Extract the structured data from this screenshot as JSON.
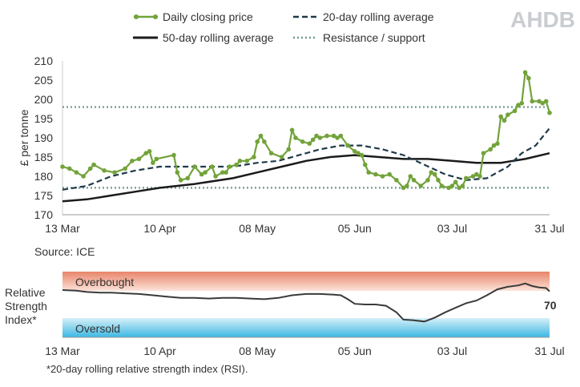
{
  "brand": {
    "logo_text": "AHDB"
  },
  "colors": {
    "daily": "#72a33a",
    "ma20": "#1f3a4a",
    "ma50": "#1b1b1b",
    "resistance": "#6f9a8d",
    "rsi": "#3a3a3a"
  },
  "footer": {
    "source": "Source: ICE",
    "rsi_note": "*20-day rolling relative strength index (RSI)."
  },
  "chart_data": [
    {
      "type": "line",
      "ylabel": "£ per tonne",
      "ylim": [
        170,
        210
      ],
      "yticks": [
        170,
        175,
        180,
        185,
        190,
        195,
        200,
        205,
        210
      ],
      "x_ticks": [
        "13 Mar",
        "10 Apr",
        "08 May",
        "05 Jun",
        "03 Jul",
        "31 Jul"
      ],
      "grid": false,
      "legend": "top",
      "series": [
        {
          "name": "Daily closing price",
          "style": "line-with-markers",
          "values": [
            [
              "13 Mar",
              182.5
            ],
            [
              "15 Mar",
              182.0
            ],
            [
              "17 Mar",
              181.0
            ],
            [
              "19 Mar",
              180.0
            ],
            [
              "21 Mar",
              182.0
            ],
            [
              "22 Mar",
              183.0
            ],
            [
              "25 Mar",
              181.5
            ],
            [
              "28 Mar",
              181.0
            ],
            [
              "31 Mar",
              182.0
            ],
            [
              "02 Apr",
              184.0
            ],
            [
              "04 Apr",
              184.5
            ],
            [
              "06 Apr",
              186.0
            ],
            [
              "07 Apr",
              186.5
            ],
            [
              "08 Apr",
              183.5
            ],
            [
              "09 Apr",
              184.5
            ],
            [
              "14 Apr",
              185.5
            ],
            [
              "15 Apr",
              181.0
            ],
            [
              "16 Apr",
              179.0
            ],
            [
              "18 Apr",
              179.5
            ],
            [
              "20 Apr",
              182.5
            ],
            [
              "22 Apr",
              180.5
            ],
            [
              "23 Apr",
              181.0
            ],
            [
              "25 Apr",
              182.5
            ],
            [
              "26 Apr",
              180.0
            ],
            [
              "28 Apr",
              181.0
            ],
            [
              "29 Apr",
              181.0
            ],
            [
              "30 Apr",
              182.5
            ],
            [
              "02 May",
              183.0
            ],
            [
              "03 May",
              184.0
            ],
            [
              "05 May",
              184.0
            ],
            [
              "07 May",
              185.0
            ],
            [
              "08 May",
              189.0
            ],
            [
              "09 May",
              190.5
            ],
            [
              "10 May",
              189.0
            ],
            [
              "12 May",
              186.0
            ],
            [
              "15 May",
              185.0
            ],
            [
              "17 May",
              187.0
            ],
            [
              "18 May",
              192.0
            ],
            [
              "19 May",
              190.0
            ],
            [
              "21 May",
              189.0
            ],
            [
              "23 May",
              188.5
            ],
            [
              "24 May",
              189.5
            ],
            [
              "25 May",
              190.5
            ],
            [
              "26 May",
              190.0
            ],
            [
              "28 May",
              190.5
            ],
            [
              "30 May",
              190.5
            ],
            [
              "31 May",
              190.0
            ],
            [
              "01 Jun",
              190.5
            ],
            [
              "03 Jun",
              188.0
            ],
            [
              "05 Jun",
              186.5
            ],
            [
              "06 Jun",
              186.0
            ],
            [
              "07 Jun",
              185.5
            ],
            [
              "08 Jun",
              183.0
            ],
            [
              "09 Jun",
              181.0
            ],
            [
              "11 Jun",
              180.5
            ],
            [
              "13 Jun",
              180.0
            ],
            [
              "15 Jun",
              180.5
            ],
            [
              "17 Jun",
              179.0
            ],
            [
              "19 Jun",
              177.0
            ],
            [
              "20 Jun",
              177.5
            ],
            [
              "21 Jun",
              180.0
            ],
            [
              "22 Jun",
              179.0
            ],
            [
              "24 Jun",
              177.5
            ],
            [
              "26 Jun",
              179.0
            ],
            [
              "27 Jun",
              181.0
            ],
            [
              "28 Jun",
              180.5
            ],
            [
              "29 Jun",
              179.0
            ],
            [
              "30 Jun",
              177.5
            ],
            [
              "02 Jul",
              177.0
            ],
            [
              "03 Jul",
              177.5
            ],
            [
              "04 Jul",
              178.5
            ],
            [
              "05 Jul",
              177.0
            ],
            [
              "06 Jul",
              177.5
            ],
            [
              "07 Jul",
              179.5
            ],
            [
              "09 Jul",
              180.0
            ],
            [
              "10 Jul",
              180.5
            ],
            [
              "11 Jul",
              180.0
            ],
            [
              "12 Jul",
              186.0
            ],
            [
              "14 Jul",
              187.0
            ],
            [
              "15 Jul",
              188.0
            ],
            [
              "16 Jul",
              188.5
            ],
            [
              "17 Jul",
              195.5
            ],
            [
              "18 Jul",
              194.5
            ],
            [
              "19 Jul",
              196.0
            ],
            [
              "21 Jul",
              197.0
            ],
            [
              "22 Jul",
              198.5
            ],
            [
              "23 Jul",
              199.0
            ],
            [
              "24 Jul",
              207.0
            ],
            [
              "25 Jul",
              205.5
            ],
            [
              "26 Jul",
              199.5
            ],
            [
              "28 Jul",
              199.5
            ],
            [
              "29 Jul",
              199.0
            ],
            [
              "30 Jul",
              199.5
            ],
            [
              "31 Jul",
              196.5
            ]
          ]
        },
        {
          "name": "20-day rolling average",
          "style": "dashed",
          "values": [
            [
              "13 Mar",
              176.5
            ],
            [
              "20 Mar",
              177.5
            ],
            [
              "27 Mar",
              180.0
            ],
            [
              "03 Apr",
              181.5
            ],
            [
              "10 Apr",
              182.5
            ],
            [
              "20 Apr",
              182.5
            ],
            [
              "01 May",
              182.5
            ],
            [
              "08 May",
              183.5
            ],
            [
              "14 May",
              184.0
            ],
            [
              "20 May",
              185.5
            ],
            [
              "26 May",
              187.0
            ],
            [
              "01 Jun",
              188.0
            ],
            [
              "07 Jun",
              188.0
            ],
            [
              "13 Jun",
              187.0
            ],
            [
              "19 Jun",
              185.5
            ],
            [
              "25 Jun",
              183.0
            ],
            [
              "01 Jul",
              180.5
            ],
            [
              "07 Jul",
              179.0
            ],
            [
              "13 Jul",
              179.5
            ],
            [
              "19 Jul",
              182.5
            ],
            [
              "23 Jul",
              186.0
            ],
            [
              "27 Jul",
              188.0
            ],
            [
              "31 Jul",
              192.5
            ]
          ]
        },
        {
          "name": "50-day rolling average",
          "style": "solid",
          "values": [
            [
              "13 Mar",
              173.5
            ],
            [
              "20 Mar",
              174.0
            ],
            [
              "27 Mar",
              175.0
            ],
            [
              "03 Apr",
              176.0
            ],
            [
              "10 Apr",
              177.0
            ],
            [
              "20 Apr",
              178.0
            ],
            [
              "01 May",
              179.5
            ],
            [
              "08 May",
              181.0
            ],
            [
              "15 May",
              182.5
            ],
            [
              "22 May",
              184.0
            ],
            [
              "29 May",
              185.0
            ],
            [
              "05 Jun",
              185.5
            ],
            [
              "12 Jun",
              185.0
            ],
            [
              "19 Jun",
              184.5
            ],
            [
              "26 Jun",
              184.5
            ],
            [
              "03 Jul",
              184.0
            ],
            [
              "10 Jul",
              183.5
            ],
            [
              "17 Jul",
              183.5
            ],
            [
              "24 Jul",
              184.5
            ],
            [
              "31 Jul",
              186.0
            ]
          ]
        },
        {
          "name": "Resistance / support",
          "style": "dotted",
          "levels": [
            198,
            177
          ]
        }
      ]
    },
    {
      "type": "line",
      "ylabel": "Relative Strength Index*",
      "x_ticks": [
        "13 Mar",
        "10 Apr",
        "08 May",
        "05 Jun",
        "03 Jul",
        "31 Jul"
      ],
      "ylim": [
        0,
        100
      ],
      "bands": [
        {
          "label": "Overbought",
          "from": 70,
          "to": 100,
          "color_top": "#e8856a",
          "color_bottom": "#fbe3d9"
        },
        {
          "label": "Oversold",
          "from": 0,
          "to": 30,
          "color_top": "#d6f0f8",
          "color_bottom": "#3cb7e3"
        }
      ],
      "last_value_label": "70",
      "series": [
        {
          "name": "RSI",
          "values": [
            [
              "13 Mar",
              72
            ],
            [
              "17 Mar",
              71
            ],
            [
              "20 Mar",
              69
            ],
            [
              "24 Mar",
              68
            ],
            [
              "27 Mar",
              68
            ],
            [
              "31 Mar",
              67
            ],
            [
              "04 Apr",
              66
            ],
            [
              "08 Apr",
              64
            ],
            [
              "12 Apr",
              62
            ],
            [
              "16 Apr",
              60
            ],
            [
              "20 Apr",
              60
            ],
            [
              "24 Apr",
              59
            ],
            [
              "28 Apr",
              60
            ],
            [
              "02 May",
              60
            ],
            [
              "06 May",
              59
            ],
            [
              "10 May",
              58
            ],
            [
              "14 May",
              60
            ],
            [
              "18 May",
              64
            ],
            [
              "22 May",
              66
            ],
            [
              "26 May",
              66
            ],
            [
              "30 May",
              65
            ],
            [
              "01 Jun",
              64
            ],
            [
              "03 Jun",
              58
            ],
            [
              "05 Jun",
              51
            ],
            [
              "08 Jun",
              50
            ],
            [
              "11 Jun",
              50
            ],
            [
              "14 Jun",
              48
            ],
            [
              "17 Jun",
              38
            ],
            [
              "19 Jun",
              27
            ],
            [
              "22 Jun",
              26
            ],
            [
              "25 Jun",
              24
            ],
            [
              "28 Jun",
              30
            ],
            [
              "01 Jul",
              38
            ],
            [
              "04 Jul",
              45
            ],
            [
              "07 Jul",
              52
            ],
            [
              "10 Jul",
              56
            ],
            [
              "13 Jul",
              64
            ],
            [
              "16 Jul",
              73
            ],
            [
              "19 Jul",
              77
            ],
            [
              "22 Jul",
              79
            ],
            [
              "24 Jul",
              82
            ],
            [
              "26 Jul",
              78
            ],
            [
              "28 Jul",
              76
            ],
            [
              "30 Jul",
              75
            ],
            [
              "31 Jul",
              70
            ]
          ]
        }
      ]
    }
  ]
}
